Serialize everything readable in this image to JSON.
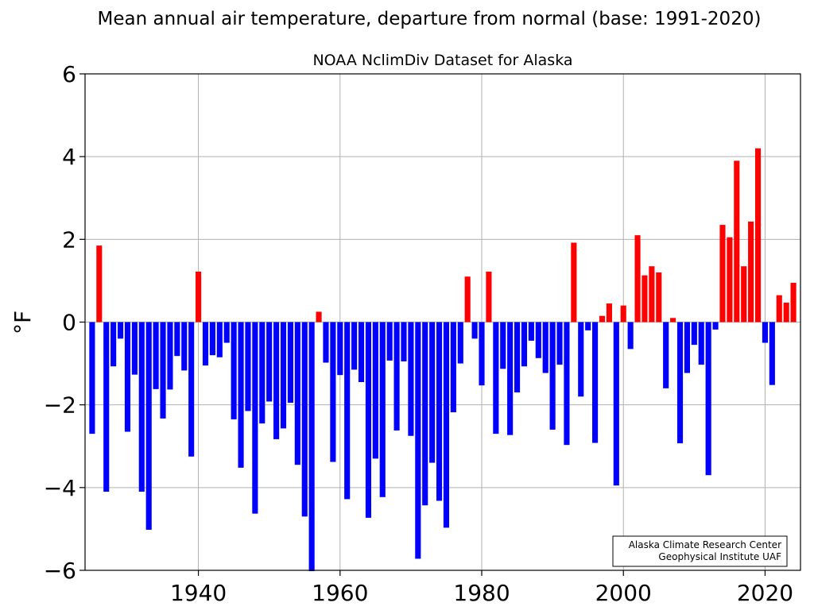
{
  "chart_data": {
    "type": "bar",
    "title": "Mean annual air temperature, departure from normal (base: 1991-2020)",
    "subtitle": "NOAA NclimDiv Dataset for Alaska",
    "xlabel": "",
    "ylabel": "°F",
    "xlim": [
      1924,
      2025
    ],
    "ylim": [
      -6,
      6
    ],
    "x_ticks": [
      1940,
      1960,
      1980,
      2000,
      2020
    ],
    "y_ticks": [
      6,
      4,
      2,
      0,
      -2,
      -4,
      -6
    ],
    "y_tick_labels": [
      "6",
      "4",
      "2",
      "0",
      "−2",
      "−4",
      "−6"
    ],
    "grid": true,
    "positive_color": "#ff0000",
    "negative_color": "#0000ff",
    "credit": [
      "Alaska Climate Research Center",
      "Geophysical Institute UAF"
    ],
    "x": [
      1925,
      1926,
      1927,
      1928,
      1929,
      1930,
      1931,
      1932,
      1933,
      1934,
      1935,
      1936,
      1937,
      1938,
      1939,
      1940,
      1941,
      1942,
      1943,
      1944,
      1945,
      1946,
      1947,
      1948,
      1949,
      1950,
      1951,
      1952,
      1953,
      1954,
      1955,
      1956,
      1957,
      1958,
      1959,
      1960,
      1961,
      1962,
      1963,
      1964,
      1965,
      1966,
      1967,
      1968,
      1969,
      1970,
      1971,
      1972,
      1973,
      1974,
      1975,
      1976,
      1977,
      1978,
      1979,
      1980,
      1981,
      1982,
      1983,
      1984,
      1985,
      1986,
      1987,
      1988,
      1989,
      1990,
      1991,
      1992,
      1993,
      1994,
      1995,
      1996,
      1997,
      1998,
      1999,
      2000,
      2001,
      2002,
      2003,
      2004,
      2005,
      2006,
      2007,
      2008,
      2009,
      2010,
      2011,
      2012,
      2013,
      2014,
      2015,
      2016,
      2017,
      2018,
      2019,
      2020,
      2021,
      2022,
      2023,
      2024
    ],
    "values": [
      -2.7,
      1.85,
      -4.1,
      -1.07,
      -0.4,
      -2.65,
      -1.27,
      -4.1,
      -5.02,
      -1.62,
      -2.33,
      -1.63,
      -0.82,
      -1.17,
      -3.25,
      1.22,
      -1.05,
      -0.8,
      -0.85,
      -0.5,
      -2.35,
      -3.52,
      -2.15,
      -4.63,
      -2.45,
      -1.92,
      -2.83,
      -2.57,
      -1.95,
      -3.45,
      -4.7,
      -6.02,
      0.25,
      -0.98,
      -3.38,
      -1.28,
      -4.28,
      -1.15,
      -1.45,
      -4.73,
      -3.3,
      -4.23,
      -0.93,
      -2.62,
      -0.95,
      -2.75,
      -5.72,
      -4.43,
      -3.4,
      -4.32,
      -4.97,
      -2.18,
      -1.0,
      1.1,
      -0.4,
      -1.53,
      1.22,
      -2.7,
      -1.13,
      -2.73,
      -1.7,
      -1.07,
      -0.45,
      -0.87,
      -1.23,
      -2.6,
      -1.03,
      -2.97,
      1.92,
      -1.8,
      -0.2,
      -2.92,
      0.15,
      0.45,
      -3.95,
      0.4,
      -0.65,
      2.1,
      1.13,
      1.35,
      1.2,
      -1.6,
      0.1,
      -2.93,
      -1.23,
      -0.55,
      -1.03,
      -3.7,
      -0.18,
      2.35,
      2.05,
      3.9,
      1.35,
      2.43,
      4.2,
      -0.5,
      -1.52,
      0.65,
      0.47,
      0.95
    ]
  }
}
